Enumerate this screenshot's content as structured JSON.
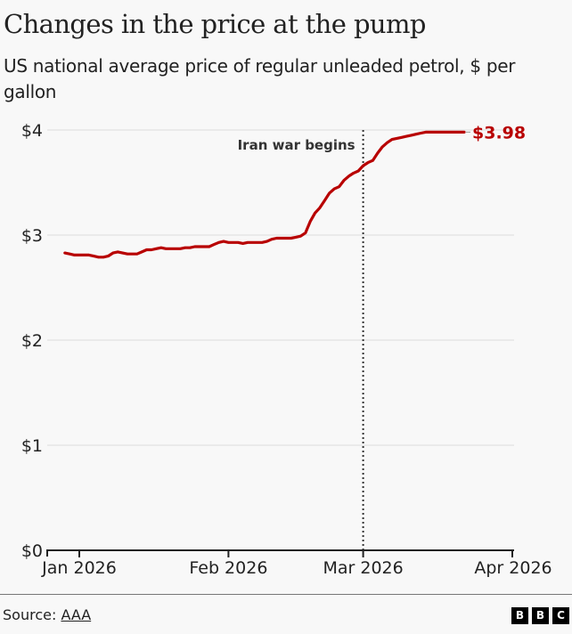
{
  "header": {
    "title": "Changes in the price at the pump",
    "subtitle": "US national average price of regular unleaded petrol, $ per gallon"
  },
  "footer": {
    "source_label": "Source: ",
    "source_link": "AAA",
    "logo_letters": [
      "B",
      "B",
      "C"
    ]
  },
  "colors": {
    "line": "#b80000",
    "gridline": "#e6e6e6",
    "axis": "#222222",
    "annotation_line": "#333333",
    "background": "#f8f8f8"
  },
  "chart_data": {
    "type": "line",
    "title": "Changes in the price at the pump",
    "subtitle": "US national average price of regular unleaded petrol, $ per gallon",
    "xlabel": "",
    "ylabel": "",
    "ylim": [
      0,
      4
    ],
    "xlim_days": [
      -5,
      95
    ],
    "x_reference": "day offset from 1 Jan 2026",
    "grid": true,
    "y_ticks": [
      {
        "value": 0,
        "label": "$0"
      },
      {
        "value": 1,
        "label": "$1"
      },
      {
        "value": 2,
        "label": "$2"
      },
      {
        "value": 3,
        "label": "$3"
      },
      {
        "value": 4,
        "label": "$4"
      }
    ],
    "x_ticks": [
      {
        "day": 0,
        "label": "Jan 2026"
      },
      {
        "day": 31,
        "label": "Feb 2026"
      },
      {
        "day": 59,
        "label": "Mar 2026"
      },
      {
        "day": 90,
        "label": "Apr 2026"
      }
    ],
    "series": [
      {
        "name": "US national average regular unleaded ($/gallon)",
        "x_days": [
          -3,
          -2,
          -1,
          0,
          1,
          2,
          3,
          4,
          5,
          6,
          7,
          8,
          9,
          10,
          11,
          12,
          13,
          14,
          15,
          16,
          17,
          18,
          19,
          20,
          21,
          22,
          23,
          24,
          25,
          26,
          27,
          28,
          29,
          30,
          31,
          32,
          33,
          34,
          35,
          36,
          37,
          38,
          39,
          40,
          41,
          42,
          43,
          44,
          45,
          46,
          47,
          48,
          49,
          50,
          51,
          52,
          53,
          54,
          55,
          56,
          57,
          58,
          59,
          60,
          61,
          62,
          63,
          64,
          65,
          66,
          67,
          68,
          69,
          70,
          71,
          72,
          73,
          74,
          75,
          76,
          77,
          78,
          79,
          80
        ],
        "values": [
          2.83,
          2.82,
          2.81,
          2.81,
          2.81,
          2.81,
          2.8,
          2.79,
          2.79,
          2.8,
          2.83,
          2.84,
          2.83,
          2.82,
          2.82,
          2.82,
          2.84,
          2.86,
          2.86,
          2.87,
          2.88,
          2.87,
          2.87,
          2.87,
          2.87,
          2.88,
          2.88,
          2.89,
          2.89,
          2.89,
          2.89,
          2.91,
          2.93,
          2.94,
          2.93,
          2.93,
          2.93,
          2.92,
          2.93,
          2.93,
          2.93,
          2.93,
          2.94,
          2.96,
          2.97,
          2.97,
          2.97,
          2.97,
          2.98,
          2.99,
          3.02,
          3.13,
          3.21,
          3.26,
          3.33,
          3.4,
          3.44,
          3.46,
          3.52,
          3.56,
          3.59,
          3.61,
          3.66,
          3.69,
          3.71,
          3.78,
          3.84,
          3.88,
          3.91,
          3.92,
          3.93,
          3.94,
          3.95,
          3.96,
          3.97,
          3.98,
          3.98,
          3.98,
          3.98,
          3.98,
          3.98,
          3.98,
          3.98,
          3.98
        ],
        "end_label": "$3.98"
      }
    ],
    "annotations": [
      {
        "type": "vertical-dotted-line",
        "day": 59,
        "label": "Iran war begins"
      }
    ]
  }
}
